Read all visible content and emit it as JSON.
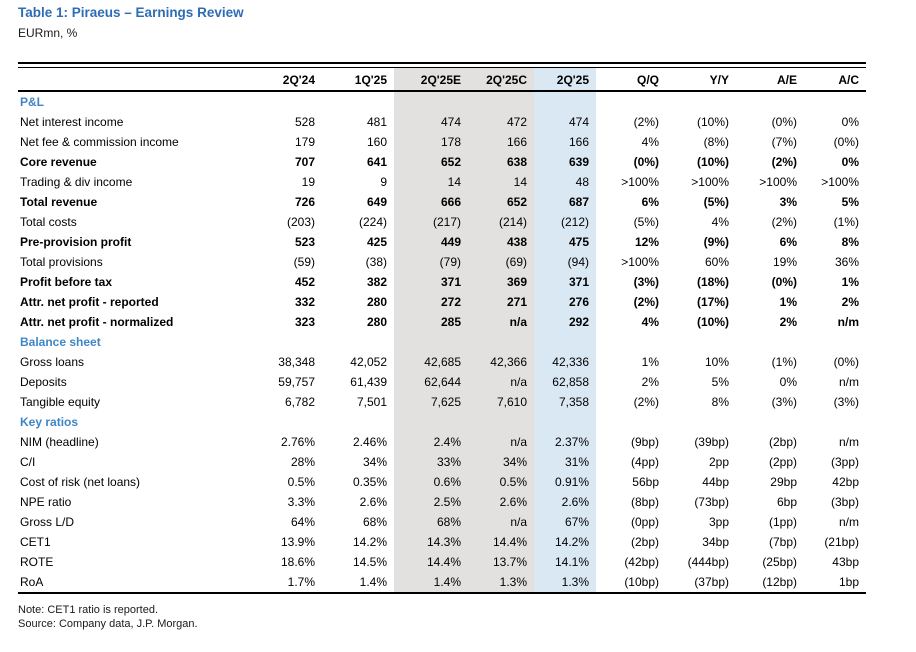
{
  "title": "Table 1: Piraeus – Earnings Review",
  "subtitle": "EURmn, %",
  "note": "Note: CET1 ratio is reported.",
  "source": "Source: Company data, J.P. Morgan.",
  "colors": {
    "title_blue": "#2e6db4",
    "section_blue": "#3f86c6",
    "estimate_columns_bg": "#e3e1df",
    "actual_column_bg": "#dae8f4"
  },
  "table": {
    "columns": [
      "",
      "2Q'24",
      "1Q'25",
      "2Q'25E",
      "2Q'25C",
      "2Q'25",
      "Q/Q",
      "Y/Y",
      "A/E",
      "A/C"
    ],
    "shaded_gray_columns": [
      "2Q'25E",
      "2Q'25C"
    ],
    "shaded_blue_columns": [
      "2Q'25"
    ],
    "rows": [
      {
        "label": "P&L",
        "type": "section",
        "values": [
          "",
          "",
          "",
          "",
          "",
          "",
          "",
          "",
          ""
        ]
      },
      {
        "label": "Net interest income",
        "type": "data",
        "bold": false,
        "values": [
          "528",
          "481",
          "474",
          "472",
          "474",
          "(2%)",
          "(10%)",
          "(0%)",
          "0%"
        ]
      },
      {
        "label": "Net fee & commission income",
        "type": "data",
        "bold": false,
        "values": [
          "179",
          "160",
          "178",
          "166",
          "166",
          "4%",
          "(8%)",
          "(7%)",
          "(0%)"
        ]
      },
      {
        "label": "Core revenue",
        "type": "data",
        "bold": true,
        "values": [
          "707",
          "641",
          "652",
          "638",
          "639",
          "(0%)",
          "(10%)",
          "(2%)",
          "0%"
        ]
      },
      {
        "label": "Trading & div income",
        "type": "data",
        "bold": false,
        "values": [
          "19",
          "9",
          "14",
          "14",
          "48",
          ">100%",
          ">100%",
          ">100%",
          ">100%"
        ]
      },
      {
        "label": "Total revenue",
        "type": "data",
        "bold": true,
        "values": [
          "726",
          "649",
          "666",
          "652",
          "687",
          "6%",
          "(5%)",
          "3%",
          "5%"
        ]
      },
      {
        "label": "Total costs",
        "type": "data",
        "bold": false,
        "values": [
          "(203)",
          "(224)",
          "(217)",
          "(214)",
          "(212)",
          "(5%)",
          "4%",
          "(2%)",
          "(1%)"
        ]
      },
      {
        "label": "Pre-provision profit",
        "type": "data",
        "bold": true,
        "values": [
          "523",
          "425",
          "449",
          "438",
          "475",
          "12%",
          "(9%)",
          "6%",
          "8%"
        ]
      },
      {
        "label": "Total provisions",
        "type": "data",
        "bold": false,
        "values": [
          "(59)",
          "(38)",
          "(79)",
          "(69)",
          "(94)",
          ">100%",
          "60%",
          "19%",
          "36%"
        ]
      },
      {
        "label": "Profit before tax",
        "type": "data",
        "bold": true,
        "values": [
          "452",
          "382",
          "371",
          "369",
          "371",
          "(3%)",
          "(18%)",
          "(0%)",
          "1%"
        ]
      },
      {
        "label": "Attr. net profit - reported",
        "type": "data",
        "bold": true,
        "values": [
          "332",
          "280",
          "272",
          "271",
          "276",
          "(2%)",
          "(17%)",
          "1%",
          "2%"
        ]
      },
      {
        "label": "Attr. net profit - normalized",
        "type": "data",
        "bold": true,
        "values": [
          "323",
          "280",
          "285",
          "n/a",
          "292",
          "4%",
          "(10%)",
          "2%",
          "n/m"
        ]
      },
      {
        "label": "Balance sheet",
        "type": "section",
        "values": [
          "",
          "",
          "",
          "",
          "",
          "",
          "",
          "",
          ""
        ]
      },
      {
        "label": "Gross loans",
        "type": "data",
        "bold": false,
        "values": [
          "38,348",
          "42,052",
          "42,685",
          "42,366",
          "42,336",
          "1%",
          "10%",
          "(1%)",
          "(0%)"
        ]
      },
      {
        "label": "Deposits",
        "type": "data",
        "bold": false,
        "values": [
          "59,757",
          "61,439",
          "62,644",
          "n/a",
          "62,858",
          "2%",
          "5%",
          "0%",
          "n/m"
        ]
      },
      {
        "label": "Tangible equity",
        "type": "data",
        "bold": false,
        "values": [
          "6,782",
          "7,501",
          "7,625",
          "7,610",
          "7,358",
          "(2%)",
          "8%",
          "(3%)",
          "(3%)"
        ]
      },
      {
        "label": "Key ratios",
        "type": "section",
        "values": [
          "",
          "",
          "",
          "",
          "",
          "",
          "",
          "",
          ""
        ]
      },
      {
        "label": "NIM (headline)",
        "type": "data",
        "bold": false,
        "values": [
          "2.76%",
          "2.46%",
          "2.4%",
          "n/a",
          "2.37%",
          "(9bp)",
          "(39bp)",
          "(2bp)",
          "n/m"
        ]
      },
      {
        "label": "C/I",
        "type": "data",
        "bold": false,
        "values": [
          "28%",
          "34%",
          "33%",
          "34%",
          "31%",
          "(4pp)",
          "2pp",
          "(2pp)",
          "(3pp)"
        ]
      },
      {
        "label": "Cost of risk (net loans)",
        "type": "data",
        "bold": false,
        "values": [
          "0.5%",
          "0.35%",
          "0.6%",
          "0.5%",
          "0.91%",
          "56bp",
          "44bp",
          "29bp",
          "42bp"
        ]
      },
      {
        "label": "NPE ratio",
        "type": "data",
        "bold": false,
        "values": [
          "3.3%",
          "2.6%",
          "2.5%",
          "2.6%",
          "2.6%",
          "(8bp)",
          "(73bp)",
          "6bp",
          "(3bp)"
        ]
      },
      {
        "label": "Gross L/D",
        "type": "data",
        "bold": false,
        "values": [
          "64%",
          "68%",
          "68%",
          "n/a",
          "67%",
          "(0pp)",
          "3pp",
          "(1pp)",
          "n/m"
        ]
      },
      {
        "label": "CET1",
        "type": "data",
        "bold": false,
        "values": [
          "13.9%",
          "14.2%",
          "14.3%",
          "14.4%",
          "14.2%",
          "(2bp)",
          "34bp",
          "(7bp)",
          "(21bp)"
        ]
      },
      {
        "label": "ROTE",
        "type": "data",
        "bold": false,
        "values": [
          "18.6%",
          "14.5%",
          "14.4%",
          "13.7%",
          "14.1%",
          "(42bp)",
          "(444bp)",
          "(25bp)",
          "43bp"
        ]
      },
      {
        "label": "RoA",
        "type": "data",
        "bold": false,
        "values": [
          "1.7%",
          "1.4%",
          "1.4%",
          "1.3%",
          "1.3%",
          "(10bp)",
          "(37bp)",
          "(12bp)",
          "1bp"
        ]
      }
    ]
  }
}
